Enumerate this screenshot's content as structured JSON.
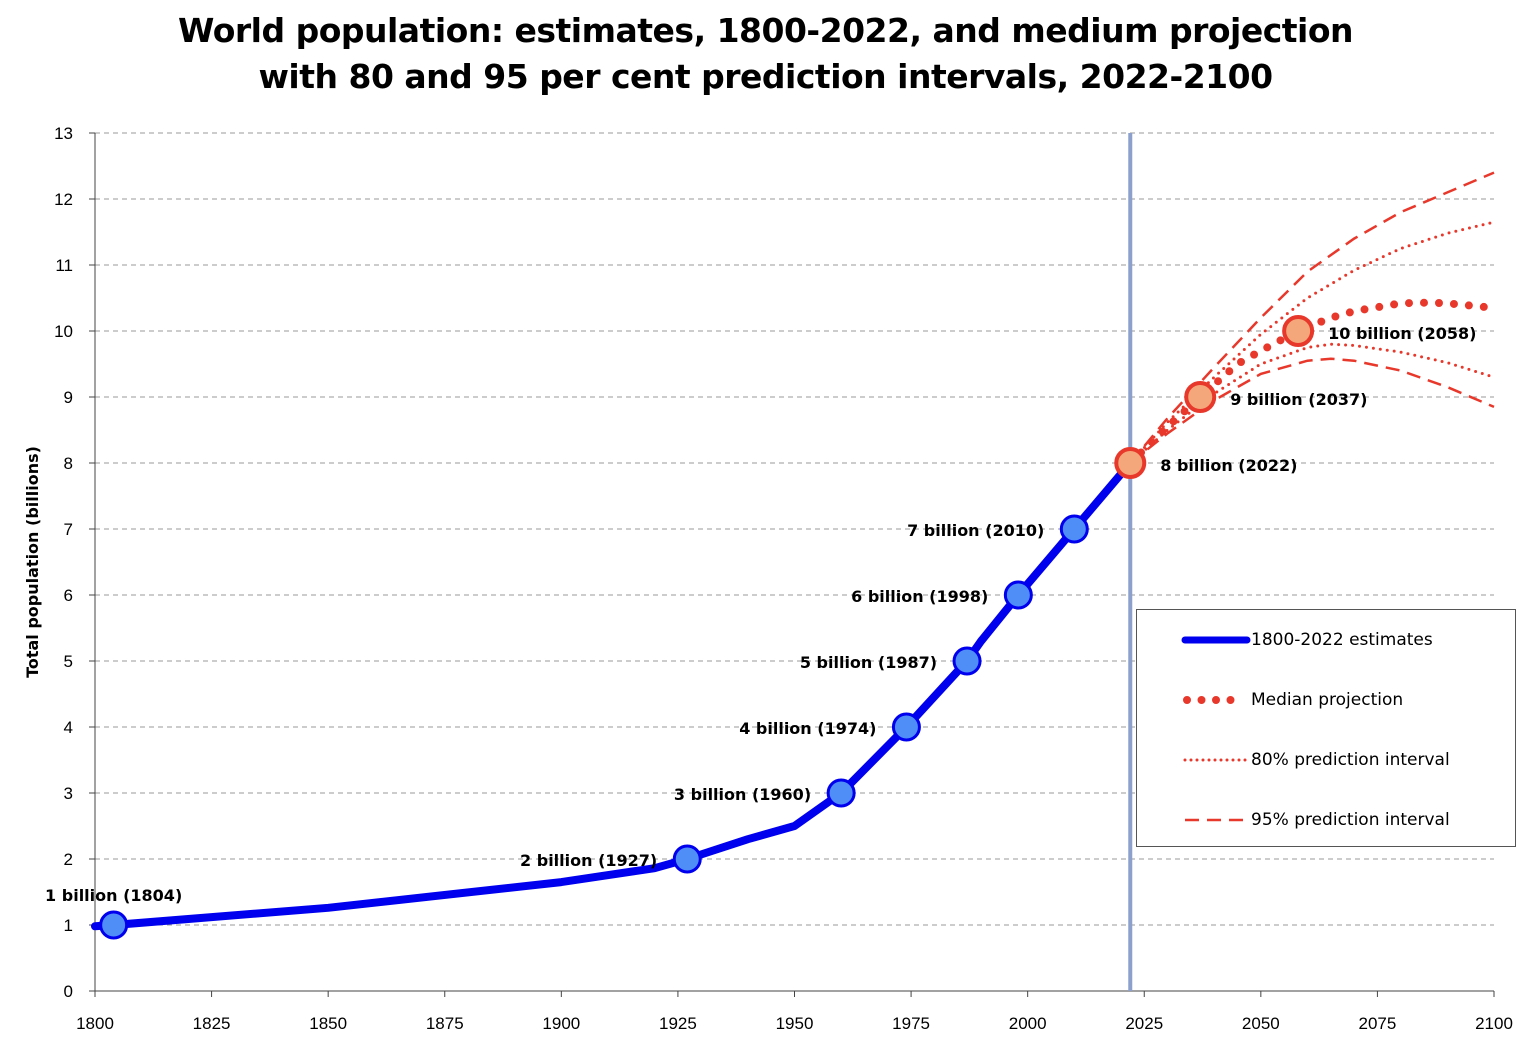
{
  "chart_data": {
    "type": "line",
    "title_line1": "World population: estimates, 1800-2022, and medium projection",
    "title_line2": "with 80 and 95 per cent prediction intervals, 2022-2100",
    "xlabel": "",
    "ylabel": "Total population (billions)",
    "xlim": [
      1800,
      2100
    ],
    "ylim": [
      0,
      13
    ],
    "xticks": [
      "1800",
      "1825",
      "1850",
      "1875",
      "1900",
      "1925",
      "1950",
      "1975",
      "2000",
      "2025",
      "2050",
      "2075",
      "2100"
    ],
    "yticks": [
      "0",
      "1",
      "2",
      "3",
      "4",
      "5",
      "6",
      "7",
      "8",
      "9",
      "10",
      "11",
      "12",
      "13"
    ],
    "grid": "horizontal dashed",
    "reference_year": 2022,
    "series": [
      {
        "name": "1800-2022 estimates",
        "color": "#0000ee",
        "style": "solid-thick",
        "x": [
          1800,
          1804,
          1850,
          1900,
          1920,
          1927,
          1940,
          1950,
          1960,
          1974,
          1987,
          1990,
          1998,
          2010,
          2022
        ],
        "y": [
          0.98,
          1.0,
          1.26,
          1.65,
          1.86,
          2.0,
          2.3,
          2.5,
          3.0,
          4.0,
          5.0,
          5.3,
          6.0,
          7.0,
          8.0
        ]
      },
      {
        "name": "Median projection",
        "color": "#e8382b",
        "style": "big-dots",
        "x": [
          2022,
          2030,
          2037,
          2045,
          2050,
          2058,
          2065,
          2070,
          2080,
          2086,
          2090,
          2100
        ],
        "y": [
          8.0,
          8.55,
          9.0,
          9.5,
          9.7,
          10.0,
          10.2,
          10.3,
          10.42,
          10.43,
          10.42,
          10.35
        ]
      },
      {
        "name": "80% prediction interval",
        "color": "#e8382b",
        "style": "small-dots",
        "upper": {
          "x": [
            2022,
            2030,
            2040,
            2050,
            2060,
            2070,
            2080,
            2090,
            2100
          ],
          "y": [
            8.0,
            8.62,
            9.3,
            9.95,
            10.5,
            10.92,
            11.25,
            11.48,
            11.65
          ]
        },
        "lower": {
          "x": [
            2022,
            2030,
            2040,
            2050,
            2060,
            2065,
            2070,
            2080,
            2090,
            2100
          ],
          "y": [
            8.0,
            8.5,
            9.05,
            9.5,
            9.75,
            9.8,
            9.78,
            9.68,
            9.52,
            9.3
          ]
        }
      },
      {
        "name": "95% prediction interval",
        "color": "#e8382b",
        "style": "dashed",
        "upper": {
          "x": [
            2022,
            2030,
            2040,
            2050,
            2060,
            2070,
            2080,
            2090,
            2100
          ],
          "y": [
            8.0,
            8.68,
            9.45,
            10.2,
            10.9,
            11.4,
            11.8,
            12.1,
            12.4
          ]
        },
        "lower": {
          "x": [
            2022,
            2030,
            2040,
            2050,
            2060,
            2065,
            2070,
            2080,
            2090,
            2100
          ],
          "y": [
            8.0,
            8.45,
            8.95,
            9.35,
            9.55,
            9.58,
            9.55,
            9.4,
            9.15,
            8.85
          ]
        }
      }
    ],
    "milestones": [
      {
        "label": "1 billion (1804)",
        "year": 1804,
        "value": 1,
        "kind": "estimate",
        "anchor": "above"
      },
      {
        "label": "2 billion (1927)",
        "year": 1927,
        "value": 2,
        "kind": "estimate",
        "anchor": "left"
      },
      {
        "label": "3 billion (1960)",
        "year": 1960,
        "value": 3,
        "kind": "estimate",
        "anchor": "left"
      },
      {
        "label": "4 billion (1974)",
        "year": 1974,
        "value": 4,
        "kind": "estimate",
        "anchor": "left"
      },
      {
        "label": "5 billion (1987)",
        "year": 1987,
        "value": 5,
        "kind": "estimate",
        "anchor": "left"
      },
      {
        "label": "6 billion (1998)",
        "year": 1998,
        "value": 6,
        "kind": "estimate",
        "anchor": "left"
      },
      {
        "label": "7 billion (2010)",
        "year": 2010,
        "value": 7,
        "kind": "estimate",
        "anchor": "left"
      },
      {
        "label": "8 billion (2022)",
        "year": 2022,
        "value": 8,
        "kind": "projection",
        "anchor": "right"
      },
      {
        "label": "9 billion (2037)",
        "year": 2037,
        "value": 9,
        "kind": "projection",
        "anchor": "right"
      },
      {
        "label": "10 billion (2058)",
        "year": 2058,
        "value": 10,
        "kind": "projection",
        "anchor": "right"
      }
    ],
    "legend": [
      {
        "label": "1800-2022 estimates",
        "style": "solid-thick"
      },
      {
        "label": "Median projection",
        "style": "big-dots"
      },
      {
        "label": "80% prediction interval",
        "style": "small-dots"
      },
      {
        "label": "95% prediction interval",
        "style": "dashed"
      }
    ],
    "legend_position": "lower-right",
    "colors": {
      "estimate_line": "#0000ee",
      "estimate_marker": "#4f8ef7",
      "projection": "#e8382b",
      "projection_marker": "#f4a77a",
      "reference_line": "#8d9fcc",
      "grid": "#999999"
    }
  }
}
